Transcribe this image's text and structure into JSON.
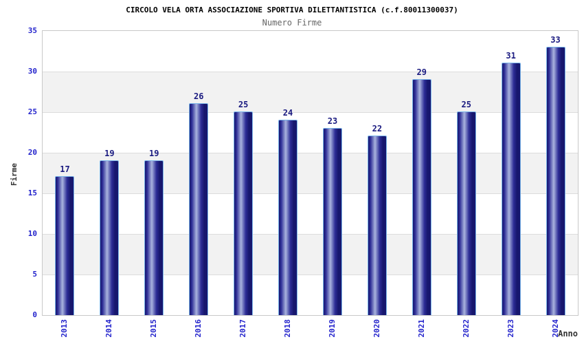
{
  "chart_data": {
    "type": "bar",
    "title": "CIRCOLO VELA ORTA ASSOCIAZIONE SPORTIVA DILETTANTISTICA (c.f.80011300037)",
    "subtitle": "Numero Firme",
    "categories": [
      "2013",
      "2014",
      "2015",
      "2016",
      "2017",
      "2018",
      "2019",
      "2020",
      "2021",
      "2022",
      "2023",
      "2024"
    ],
    "values": [
      17,
      19,
      19,
      26,
      25,
      24,
      23,
      22,
      29,
      25,
      31,
      33
    ],
    "xlabel": "Anno",
    "ylabel": "Firme",
    "ylim": [
      0,
      35
    ],
    "y_ticks": [
      0,
      5,
      10,
      15,
      20,
      25,
      30,
      35
    ],
    "grid": true,
    "legend": false,
    "bar_value_labels_shown": true,
    "alternating_bands": true
  },
  "colors": {
    "background": "#ffffff",
    "title": "#000000",
    "subtitle": "#666666",
    "axis_title": "#333333",
    "tick_label": "#2424cc",
    "value_label": "#1a1a80",
    "band_gray": "#f2f2f2",
    "grid_line": "#dcdcdc",
    "plot_border": "#c8c8c8",
    "bar_dark": "#17176e",
    "bar_mid": "#2d2d96",
    "bar_light": "#a9b3de",
    "bar_border": "#7ab5ea"
  }
}
